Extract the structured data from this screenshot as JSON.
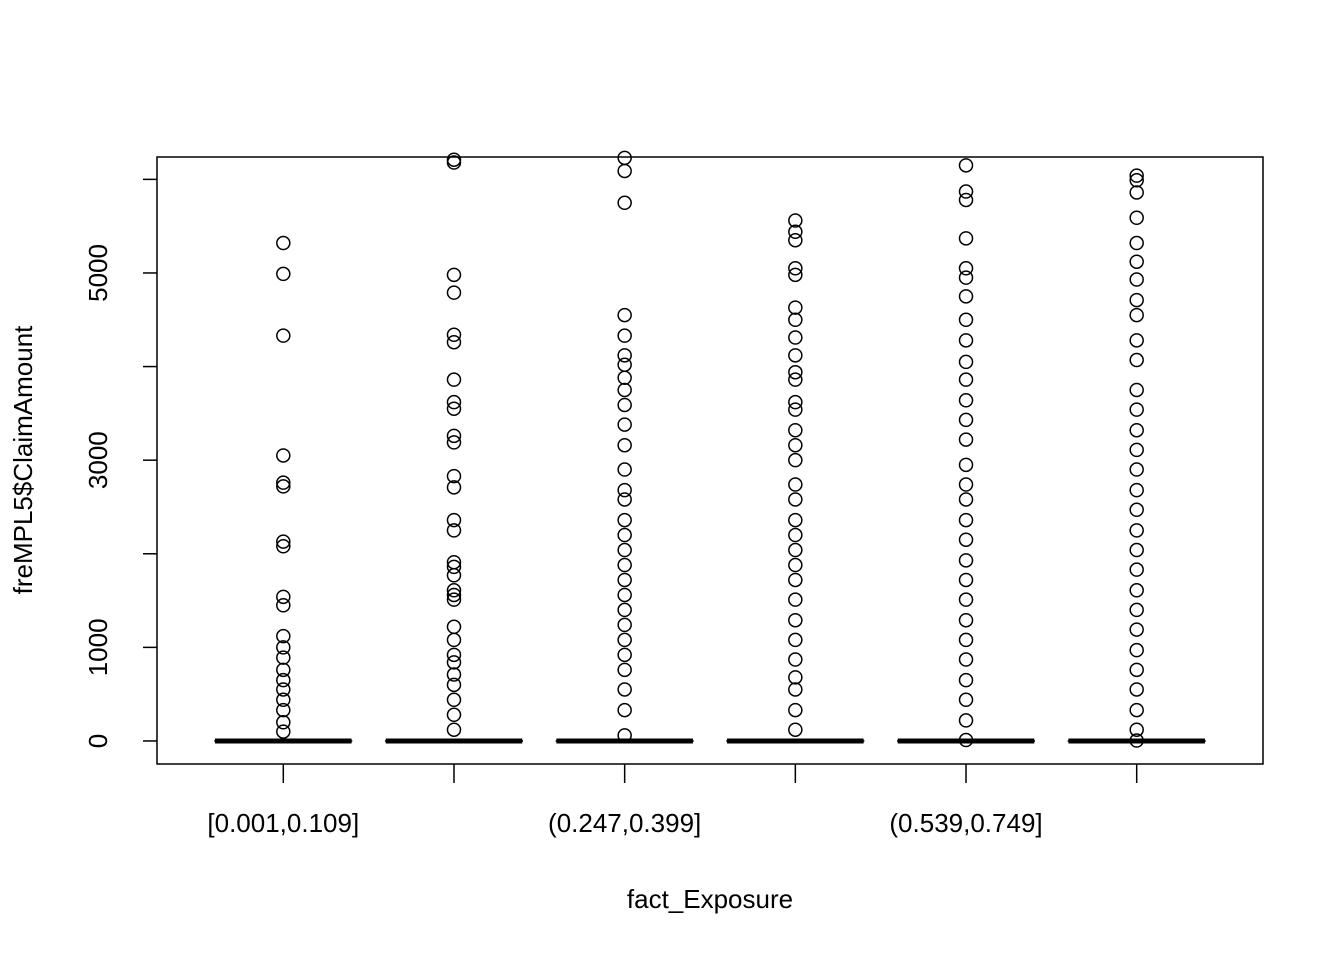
{
  "chart_data": {
    "type": "boxplot",
    "x_label": "fact_Exposure",
    "y_label": "freMPL5$ClaimAmount",
    "categories": [
      "[0.001,0.109]",
      null,
      "(0.247,0.399]",
      null,
      "(0.539,0.749]",
      null
    ],
    "boxes": [
      {
        "whisker_low": 0,
        "q1": 0,
        "median": 0,
        "q3": 0,
        "whisker_high": 0,
        "outliers": [
          5320,
          4990,
          4330,
          3050,
          2760,
          2720,
          2130,
          2080,
          1540,
          1450,
          1120,
          1000,
          890,
          760,
          650,
          550,
          440,
          330,
          200,
          100
        ]
      },
      {
        "whisker_low": 0,
        "q1": 0,
        "median": 0,
        "q3": 0,
        "whisker_high": 0,
        "outliers": [
          6210,
          6180,
          4980,
          4790,
          4340,
          4260,
          3860,
          3620,
          3550,
          3260,
          3190,
          2830,
          2710,
          2360,
          2250,
          1910,
          1860,
          1770,
          1610,
          1560,
          1510,
          1220,
          1080,
          920,
          840,
          710,
          600,
          440,
          280,
          120
        ]
      },
      {
        "whisker_low": 0,
        "q1": 0,
        "median": 0,
        "q3": 0,
        "whisker_high": 0,
        "outliers": [
          6230,
          6090,
          5750,
          4550,
          4330,
          4120,
          4020,
          3880,
          3750,
          3590,
          3380,
          3160,
          2900,
          2680,
          2580,
          2360,
          2200,
          2040,
          1880,
          1720,
          1560,
          1400,
          1240,
          1080,
          920,
          760,
          550,
          330,
          60
        ]
      },
      {
        "whisker_low": 0,
        "q1": 0,
        "median": 0,
        "q3": 0,
        "whisker_high": 0,
        "outliers": [
          5560,
          5440,
          5350,
          5050,
          4980,
          4630,
          4500,
          4310,
          4120,
          3940,
          3860,
          3620,
          3540,
          3320,
          3160,
          3000,
          2740,
          2580,
          2360,
          2200,
          2040,
          1880,
          1720,
          1510,
          1290,
          1080,
          870,
          680,
          550,
          330,
          120
        ]
      },
      {
        "whisker_low": 0,
        "q1": 0,
        "median": 0,
        "q3": 0,
        "whisker_high": 0,
        "outliers": [
          6150,
          5870,
          5780,
          5370,
          5050,
          4950,
          4750,
          4500,
          4280,
          4050,
          3860,
          3640,
          3430,
          3220,
          2950,
          2740,
          2580,
          2360,
          2150,
          1930,
          1720,
          1510,
          1290,
          1080,
          870,
          650,
          440,
          220,
          10
        ]
      },
      {
        "whisker_low": 0,
        "q1": 0,
        "median": 0,
        "q3": 0,
        "whisker_high": 0,
        "outliers": [
          6040,
          5990,
          5860,
          5590,
          5320,
          5120,
          4930,
          4710,
          4550,
          4280,
          4070,
          3750,
          3540,
          3320,
          3110,
          2900,
          2680,
          2470,
          2250,
          2040,
          1830,
          1610,
          1400,
          1190,
          970,
          760,
          550,
          330,
          120,
          5
        ]
      }
    ],
    "ylim": [
      -246,
      6239
    ],
    "yticks": [
      0,
      1000,
      3000,
      5000
    ],
    "yticks_unlabeled": [
      2000,
      4000,
      6000
    ],
    "color": "#000000"
  }
}
